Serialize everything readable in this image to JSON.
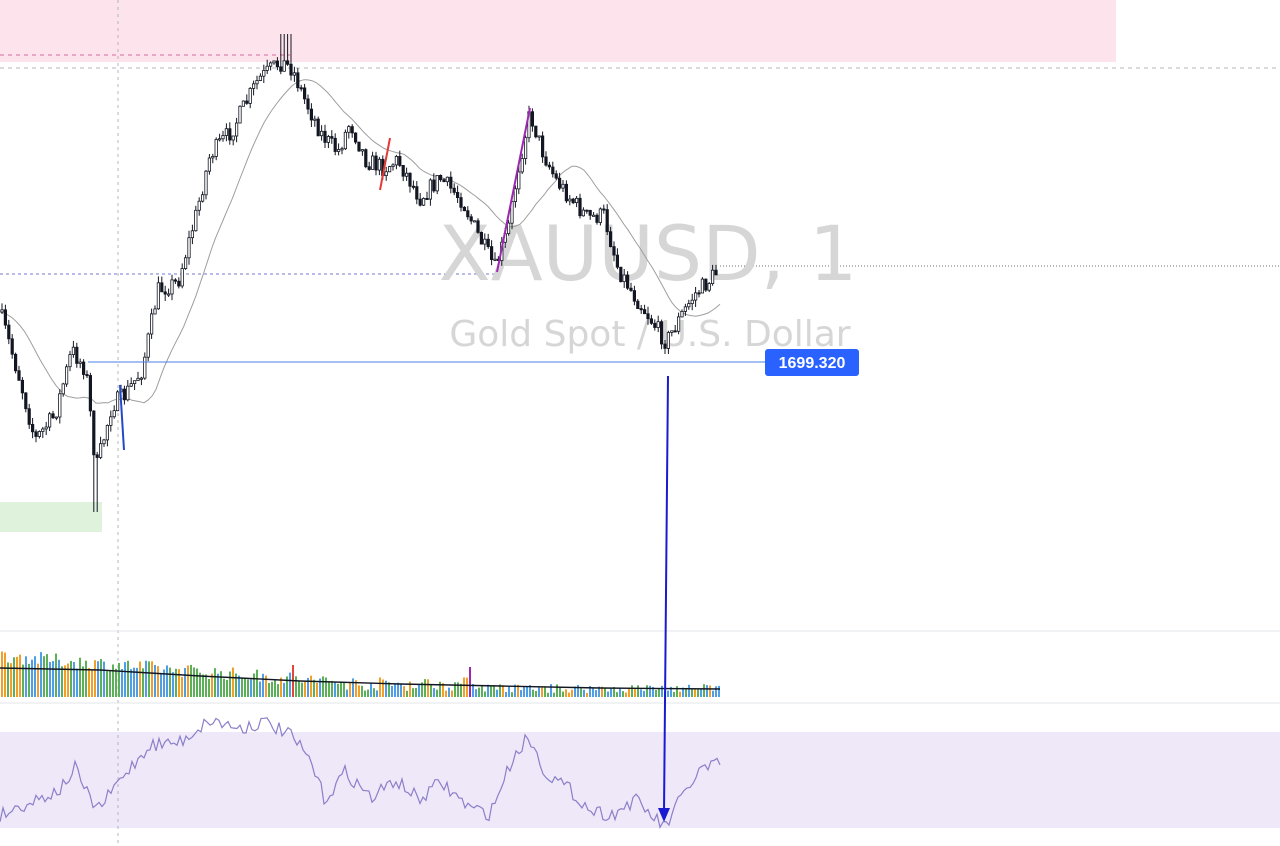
{
  "watermark": {
    "symbol": "XAUUSD, 1",
    "description": "Gold Spot / U.S. Dollar"
  },
  "price_label": {
    "value": "1699.320",
    "background": "#2962ff",
    "text_color": "#ffffff"
  },
  "colors": {
    "candle": "#131722",
    "ma_line": "#9e9e9e",
    "resistance_zone": "#fde4ec",
    "support_zone": "#dff2dc",
    "rsi_band": "#efe8f8",
    "rsi_line": "#8b7fc9",
    "arrow": "#1a1ad0",
    "horizontal_line": "#4a7fe6",
    "volume_green": "#5db05a",
    "volume_blue": "#4f9ee6",
    "volume_orange": "#f0a02a",
    "volume_red": "#e0463a",
    "volume_purple": "#9c27b0",
    "volume_ma": "#131722",
    "impulse_red": "#e53935",
    "impulse_purple": "#9c27b0",
    "impulse_blue": "#2249c9"
  },
  "chart_data": {
    "type": "candlestick",
    "symbol": "XAUUSD",
    "timeframe": "1",
    "title": "XAUUSD, 1",
    "subtitle": "Gold Spot / U.S. Dollar",
    "price_levels": {
      "support_line": 1699.32
    },
    "annotations": [
      {
        "type": "horizontal_line",
        "value": 1699.32,
        "label": "1699.320"
      },
      {
        "type": "arrow",
        "direction": "down"
      },
      {
        "type": "zone",
        "kind": "resistance"
      },
      {
        "type": "zone",
        "kind": "support"
      }
    ],
    "indicators": [
      "moving_average",
      "volume",
      "rsi"
    ],
    "grid": false
  }
}
